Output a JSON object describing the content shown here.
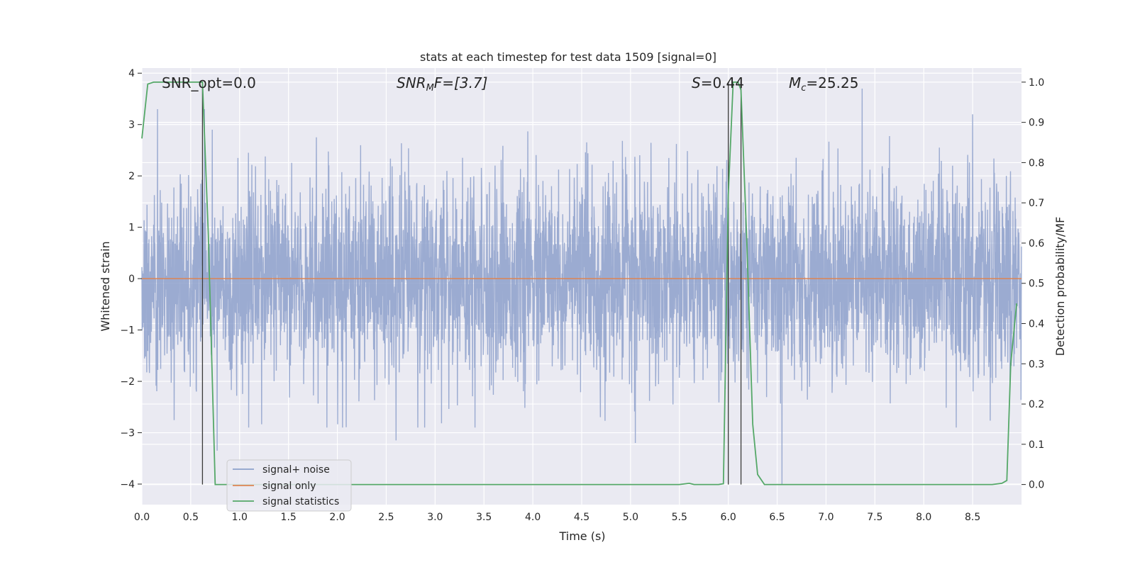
{
  "chart_data": {
    "type": "line",
    "title": "stats at each timestep for test data 1509 [signal=0]",
    "xlabel": "Time (s)",
    "ylabel": "Whitened strain",
    "ylabel_right": "Detection probability/MF",
    "xlim": [
      0,
      9.0
    ],
    "ylim": [
      -4.4,
      4.1
    ],
    "ylim_right": [
      -0.05,
      1.035
    ],
    "xticks": [
      "0.0",
      "0.5",
      "1.0",
      "1.5",
      "2.0",
      "2.5",
      "3.0",
      "3.5",
      "4.0",
      "4.5",
      "5.0",
      "5.5",
      "6.0",
      "6.5",
      "7.0",
      "7.5",
      "8.0",
      "8.5"
    ],
    "yticks_left": [
      "4",
      "3",
      "2",
      "1",
      "0",
      "−1",
      "−2",
      "−3",
      "−4"
    ],
    "yticks_right": [
      "1.0",
      "0.9",
      "0.8",
      "0.7",
      "0.6",
      "0.5",
      "0.4",
      "0.3",
      "0.2",
      "0.1",
      "0.0"
    ],
    "grid": true,
    "annotations": {
      "snr_opt": "SNR_opt=0.0",
      "snr_mf_main": "SNR",
      "snr_mf_sub": "M",
      "snr_mf_rest": "F=[3.7]",
      "s_var": "S",
      "s_rest": "=0.44",
      "mc_var": "M",
      "mc_sub": "c",
      "mc_rest": "=25.25"
    },
    "vertical_lines_x": [
      0.62,
      6.0,
      6.13
    ],
    "legend": {
      "placement": "lower-left",
      "entries": [
        "signal+ noise",
        "signal only",
        "signal statistics"
      ]
    },
    "series": [
      {
        "name": "signal+ noise",
        "color": "#8da0cb",
        "description_envelope": "whitened strain noise",
        "noise_std": 0.95,
        "duration_s": 9.0,
        "notable_peaks": [
          [
            0.16,
            3.3
          ],
          [
            0.64,
            3.3
          ],
          [
            7.37,
            3.7
          ],
          [
            8.5,
            3.2
          ],
          [
            2.6,
            -3.15
          ],
          [
            5.05,
            -3.2
          ],
          [
            0.77,
            -3.35
          ],
          [
            6.55,
            -4.0
          ]
        ]
      },
      {
        "name": "signal only",
        "color": "#dd8452",
        "x": [
          0.0,
          9.0
        ],
        "y": [
          0.0,
          0.0
        ]
      },
      {
        "name": "signal statistics",
        "color": "#55a868",
        "axis": "right",
        "x": [
          0.0,
          0.06,
          0.12,
          0.2,
          0.3,
          0.4,
          0.5,
          0.55,
          0.6,
          0.62,
          0.68,
          0.75,
          0.8,
          1.0,
          2.0,
          3.0,
          4.0,
          5.0,
          5.5,
          5.6,
          5.65,
          5.7,
          5.8,
          5.9,
          5.95,
          6.0,
          6.05,
          6.1,
          6.13,
          6.19,
          6.25,
          6.3,
          6.37,
          6.5,
          7.0,
          8.0,
          8.7,
          8.8,
          8.85,
          8.89,
          8.95
        ],
        "y": [
          0.86,
          0.995,
          1.0,
          1.0,
          1.0,
          1.0,
          1.0,
          1.0,
          1.0,
          1.0,
          0.62,
          0.0,
          0.0,
          0.0,
          0.0,
          0.0,
          0.0,
          0.0,
          0.0,
          0.003,
          0.0,
          0.0,
          0.0,
          0.0,
          0.002,
          0.72,
          1.0,
          1.0,
          0.98,
          0.6,
          0.15,
          0.025,
          0.0,
          0.0,
          0.0,
          0.0,
          0.0,
          0.003,
          0.01,
          0.3,
          0.45
        ]
      }
    ]
  }
}
